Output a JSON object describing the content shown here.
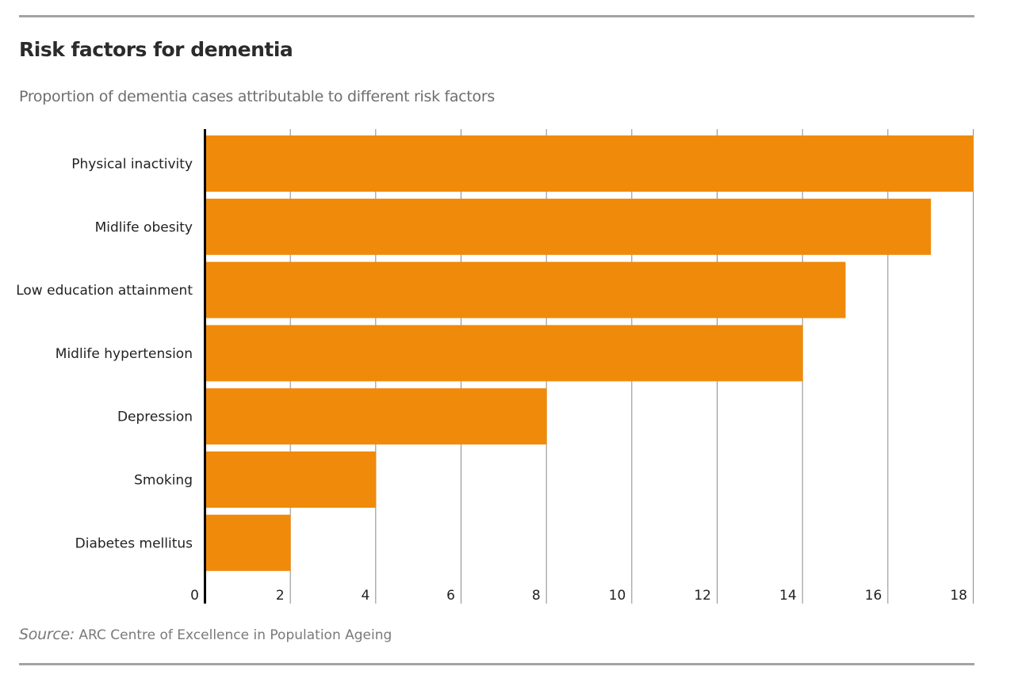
{
  "header": {
    "title": "Risk factors for dementia",
    "subtitle": "Proportion of dementia cases attributable to different risk factors"
  },
  "source": {
    "label": "Source:",
    "text": "ARC Centre of Excellence in Population Ageing"
  },
  "chart_data": {
    "type": "bar",
    "orientation": "horizontal",
    "title": "Risk factors for dementia",
    "subtitle": "Proportion of dementia cases attributable to different risk factors",
    "categories": [
      "Physical inactivity",
      "Midlife obesity",
      "Low education attainment",
      "Midlife hypertension",
      "Depression",
      "Smoking",
      "Diabetes mellitus"
    ],
    "values": [
      18,
      17,
      15,
      14,
      8,
      4,
      2
    ],
    "xlim": [
      0,
      18
    ],
    "xticks": [
      "0",
      "2",
      "4",
      "6",
      "8",
      "10",
      "12",
      "14",
      "16",
      "18"
    ],
    "grid": "vertical",
    "legend": "none",
    "bar_color": "#f08a0a",
    "grid_color": "#8a8a8a",
    "axis_color": "#000000"
  }
}
